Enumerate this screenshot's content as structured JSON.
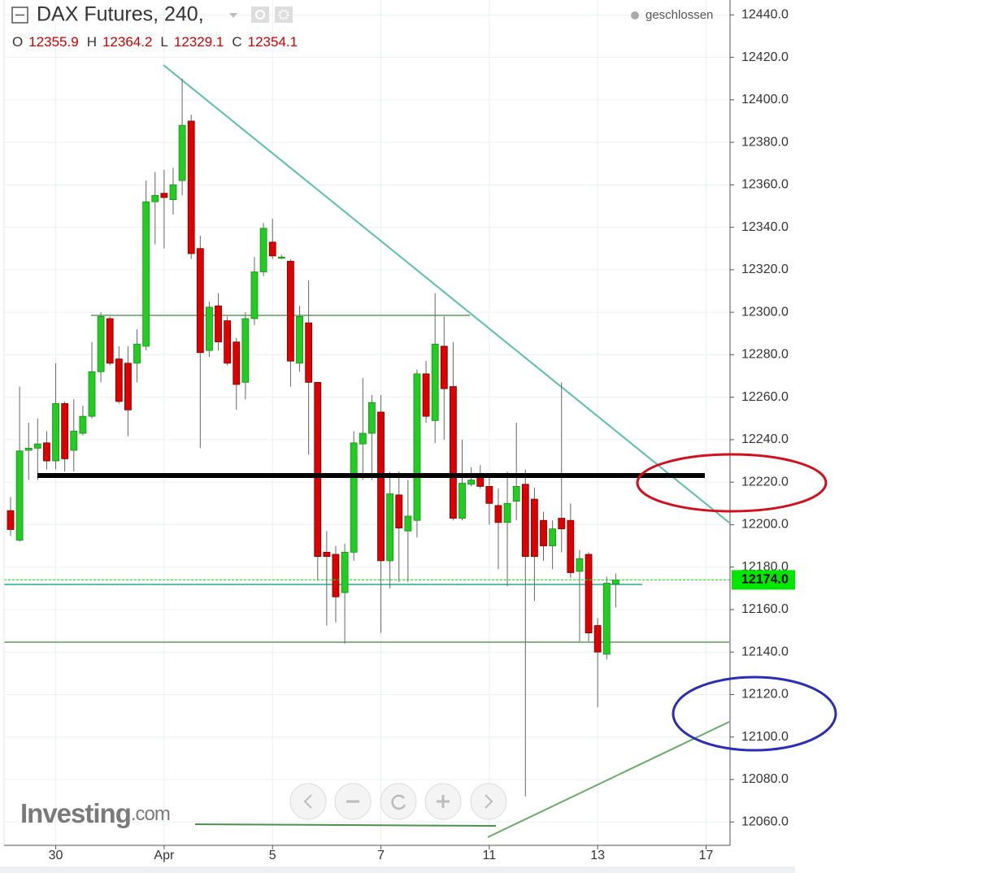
{
  "chart_data": {
    "type": "candlestick",
    "title": "DAX Futures, 240,",
    "status": "geschlossen",
    "header_ohlc": [
      {
        "name": "O",
        "value": 12355.9
      },
      {
        "name": "H",
        "value": 12364.2
      },
      {
        "name": "L",
        "value": 12329.1
      },
      {
        "name": "C",
        "value": 12354.1
      }
    ],
    "brand": "Investing",
    "brand_suffix": ".com",
    "categories": [
      null,
      null,
      null,
      null,
      null,
      "30",
      null,
      null,
      null,
      null,
      null,
      null,
      null,
      null,
      null,
      null,
      null,
      "Apr",
      null,
      null,
      null,
      null,
      null,
      null,
      null,
      null,
      null,
      null,
      null,
      "5",
      null,
      null,
      null,
      null,
      null,
      null,
      null,
      null,
      null,
      null,
      null,
      "7",
      null,
      null,
      null,
      null,
      null,
      null,
      null,
      null,
      null,
      null,
      null,
      "11",
      null,
      null,
      null,
      null,
      null,
      null,
      null,
      null,
      null,
      null,
      null,
      "13",
      null,
      null,
      null,
      null,
      null,
      null,
      null,
      null,
      null,
      null,
      null,
      "17"
    ],
    "open": [
      12206.6,
      12192.7,
      12235,
      12236,
      12238.5,
      12230,
      12257,
      12235,
      12243,
      12251,
      12272,
      12297,
      12278,
      12276,
      12276,
      12284,
      12352,
      12356,
      12353,
      12362,
      12390,
      12330,
      12282,
      12303,
      12296,
      12286,
      12267,
      12297,
      12319,
      12333,
      12326,
      12324,
      12276,
      12295,
      12267,
      12187,
      12186,
      12168,
      12187,
      12238,
      12243,
      12253,
      12183,
      12214,
      12197,
      12202,
      12271,
      12249,
      12284,
      12265,
      12203,
      12219,
      12223,
      12218,
      12209,
      12201,
      12211,
      12219,
      12212,
      12202,
      12190,
      12203,
      12202,
      12178,
      12186,
      12152.5,
      12139,
      12172,
      null,
      null,
      null,
      null,
      null,
      null,
      null,
      null,
      null,
      null
    ],
    "high": [
      12213,
      12265,
      12248,
      12250,
      12244,
      12276,
      12258,
      12259,
      12256,
      12286,
      12300,
      12298,
      12284,
      12284,
      12292,
      12362,
      12366,
      12367,
      12368,
      12410,
      12393,
      12336,
      12305,
      12309,
      12298,
      12288,
      12300,
      12326,
      12342,
      12344,
      12327,
      12325,
      12303,
      12315,
      12267,
      12197,
      12190,
      12191,
      12244,
      12269,
      12261,
      12261,
      12225,
      12225,
      12221,
      12273,
      12277,
      12309,
      12298,
      12286,
      12240,
      12227,
      12228,
      12223,
      12217,
      12225,
      12248,
      12226,
      12217.5,
      12206,
      12202,
      12267,
      12210,
      12188,
      12187,
      12156,
      12175.5,
      12177,
      null,
      null,
      null,
      null,
      null,
      null,
      null,
      null,
      null,
      null
    ],
    "low": [
      12194.6,
      12192,
      12221,
      12221,
      12226,
      12226,
      12225,
      12225,
      12242,
      12250,
      12267,
      12275,
      12257,
      12241.6,
      12267,
      12282,
      12332,
      12330,
      12346,
      12355,
      12325,
      12236,
      12279,
      12282,
      12275,
      12254,
      12259,
      12294,
      12317,
      12325,
      12325,
      12265,
      12272,
      12233,
      12173.6,
      12152.5,
      12154,
      12144,
      12183,
      12221,
      12221,
      12149,
      12170,
      12173,
      12173,
      12194,
      12248,
      12238.5,
      12240,
      12202,
      12202,
      12218,
      12217,
      12200,
      12179,
      12171,
      12202,
      12072,
      12164,
      12183,
      12179,
      12187,
      12175,
      12145,
      12145,
      12114,
      12136.5,
      12161,
      null,
      null,
      null,
      null,
      null,
      null,
      null,
      null,
      null,
      null
    ],
    "close": [
      12197.7,
      12234.7,
      12236,
      12238,
      12230,
      12257,
      12231,
      12244,
      12251,
      12272,
      12298,
      12276,
      12258,
      12254,
      12285,
      12352,
      12355,
      12354,
      12360,
      12388,
      12327.6,
      12281,
      12302.4,
      12286,
      12276,
      12266,
      12297,
      12319,
      12339.5,
      12326.5,
      12326,
      12277,
      12298,
      12267,
      12185,
      12185,
      12166,
      12187,
      12238.5,
      12243,
      12257.5,
      12183,
      12214.5,
      12198.4,
      12204,
      12271,
      12251,
      12285,
      12264,
      12203,
      12219.5,
      12221,
      12218,
      12210,
      12201,
      12210,
      12218,
      12185,
      12185,
      12190,
      12198,
      12198,
      12177.4,
      12184,
      12149,
      12140,
      12172.4,
      12174,
      null,
      null,
      null,
      null,
      null,
      null,
      null,
      null,
      null,
      null
    ],
    "up_color": "#22cc22",
    "down_color": "#dd0000",
    "last_price": {
      "value": 12174,
      "label": "12174.0"
    },
    "last_price_color": "#00e600",
    "ylim": [
      12049,
      12447
    ],
    "yticks": [
      {
        "value": 12060,
        "label": "12060.0"
      },
      {
        "value": 12080,
        "label": "12080.0"
      },
      {
        "value": 12100,
        "label": "12100.0"
      },
      {
        "value": 12120,
        "label": "12120.0"
      },
      {
        "value": 12140,
        "label": "12140.0"
      },
      {
        "value": 12160,
        "label": "12160.0"
      },
      {
        "value": 12180,
        "label": "12180.0"
      },
      {
        "value": 12200,
        "label": "12200.0"
      },
      {
        "value": 12220,
        "label": "12220.0"
      },
      {
        "value": 12240,
        "label": "12240.0"
      },
      {
        "value": 12260,
        "label": "12260.0"
      },
      {
        "value": 12280,
        "label": "12280.0"
      },
      {
        "value": 12300,
        "label": "12300.0"
      },
      {
        "value": 12320,
        "label": "12320.0"
      },
      {
        "value": 12340,
        "label": "12340.0"
      },
      {
        "value": 12360,
        "label": "12360.0"
      },
      {
        "value": 12380,
        "label": "12380.0"
      },
      {
        "value": 12400,
        "label": "12400.0"
      },
      {
        "value": 12420,
        "label": "12420.0"
      },
      {
        "value": 12440,
        "label": "12440.0"
      }
    ],
    "grid": true
  }
}
